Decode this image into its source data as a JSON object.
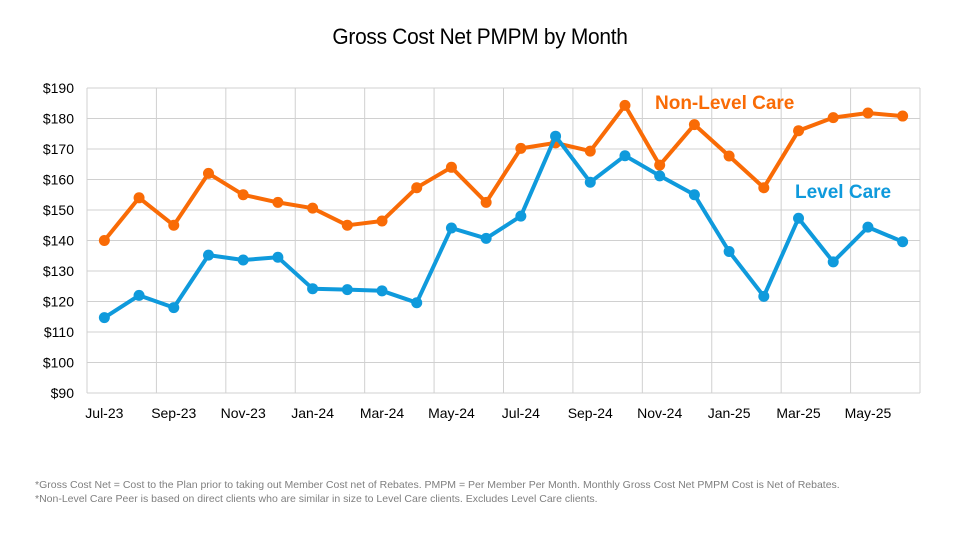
{
  "chart_data": {
    "type": "line",
    "title": "Gross Cost Net PMPM by Month",
    "xlabel": "",
    "ylabel": "",
    "categories": [
      "Jul-23",
      "Aug-23",
      "Sep-23",
      "Oct-23",
      "Nov-23",
      "Dec-23",
      "Jan-24",
      "Feb-24",
      "Mar-24",
      "Apr-24",
      "May-24",
      "Jun-24",
      "Jul-24",
      "Aug-24",
      "Sep-24",
      "Oct-24",
      "Nov-24",
      "Dec-24",
      "Jan-25",
      "Feb-25",
      "Mar-25",
      "Apr-25",
      "May-25",
      "Jun-25"
    ],
    "x_tick_labels": [
      "Jul-23",
      "Sep-23",
      "Nov-23",
      "Jan-24",
      "Mar-24",
      "May-24",
      "Jul-24",
      "Sep-24",
      "Nov-24",
      "Jan-25",
      "Mar-25",
      "May-25"
    ],
    "ylim": [
      90,
      190
    ],
    "y_ticks": [
      90,
      100,
      110,
      120,
      130,
      140,
      150,
      160,
      170,
      180,
      190
    ],
    "y_tick_labels": [
      "$90",
      "$100",
      "$110",
      "$120",
      "$130",
      "$140",
      "$150",
      "$160",
      "$170",
      "$180",
      "$190"
    ],
    "grid": true,
    "legend": "inline-labels",
    "series": [
      {
        "name": "Non-Level Care",
        "color": "#F96B06",
        "values": [
          140,
          154,
          145,
          162,
          155,
          152.5,
          150.6,
          145,
          146.4,
          157.3,
          164,
          152.5,
          170.2,
          172,
          169.3,
          184.3,
          164.7,
          178,
          167.7,
          157.3,
          176,
          180.3,
          181.8,
          180.8
        ]
      },
      {
        "name": "Level Care",
        "color": "#0F9ADC",
        "values": [
          114.7,
          122,
          118,
          135.2,
          133.6,
          134.5,
          124.2,
          123.9,
          123.5,
          119.6,
          144.1,
          140.7,
          148,
          174.2,
          159.1,
          167.8,
          161.2,
          155,
          136.4,
          121.7,
          147.3,
          133,
          144.4,
          139.6
        ]
      }
    ]
  },
  "footnotes": [
    "*Gross Cost Net = Cost to the Plan prior to taking out Member Cost net of Rebates. PMPM = Per Member Per Month. Monthly Gross Cost Net PMPM Cost is Net of Rebates.",
    "*Non-Level Care Peer is based on direct clients who are similar in size to Level Care clients. Excludes Level Care clients."
  ]
}
